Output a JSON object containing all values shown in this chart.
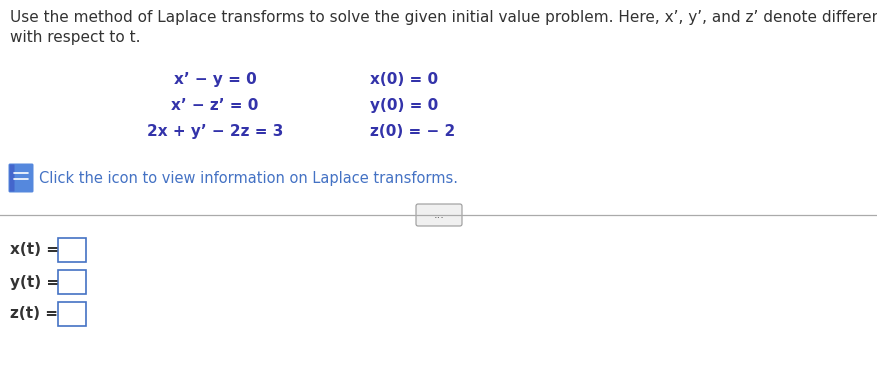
{
  "background_color": "#ffffff",
  "header_text_line1": "Use the method of Laplace transforms to solve the given initial value problem. Here, x’, y’, and z’ denote differentiation",
  "header_text_line2": "with respect to t.",
  "header_color": "#333333",
  "header_fontsize": 11.0,
  "equations_left": [
    "x’ − y = 0",
    "x’ − z’ = 0",
    "2x + y’ − 2z = 3"
  ],
  "equations_right": [
    "x(0) = 0",
    "y(0) = 0",
    "z(0) = − 2"
  ],
  "eq_color": "#3333aa",
  "eq_fontsize": 11.0,
  "icon_text": "Click the icon to view information on Laplace transforms.",
  "icon_text_color": "#4472c4",
  "icon_fontsize": 10.5,
  "dots_text": "...",
  "answer_labels": [
    "x(t) =",
    "y(t) =",
    "z(t) ="
  ],
  "answer_color": "#333333",
  "answer_fontsize": 11.0,
  "divider_color": "#aaaaaa",
  "box_edge_color": "#4472c4"
}
